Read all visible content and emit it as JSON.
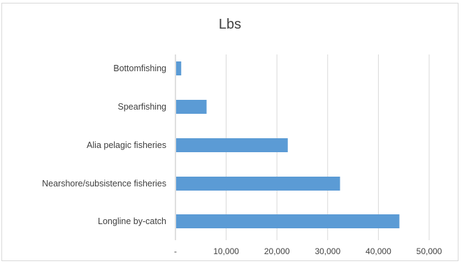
{
  "chart_data": {
    "type": "bar",
    "orientation": "horizontal",
    "title": "Lbs",
    "xlabel": "",
    "ylabel": "",
    "categories": [
      "Bottomfishing",
      "Spearfishing",
      "Alia pelagic fisheries",
      "Nearshore/subsistence fisheries",
      "Longline by-catch"
    ],
    "values": [
      1000,
      6000,
      22000,
      32300,
      44000
    ],
    "xlim": [
      0,
      50000
    ],
    "xticks": [
      0,
      10000,
      20000,
      30000,
      40000,
      50000
    ],
    "xtick_labels": [
      "-",
      "10,000",
      "20,000",
      "30,000",
      "40,000",
      "50,000"
    ],
    "grid": "vertical",
    "legend": "none",
    "bar_color": "#5b9bd5",
    "grid_color": "#d9d9d9",
    "axis_color": "#bfbfbf"
  }
}
